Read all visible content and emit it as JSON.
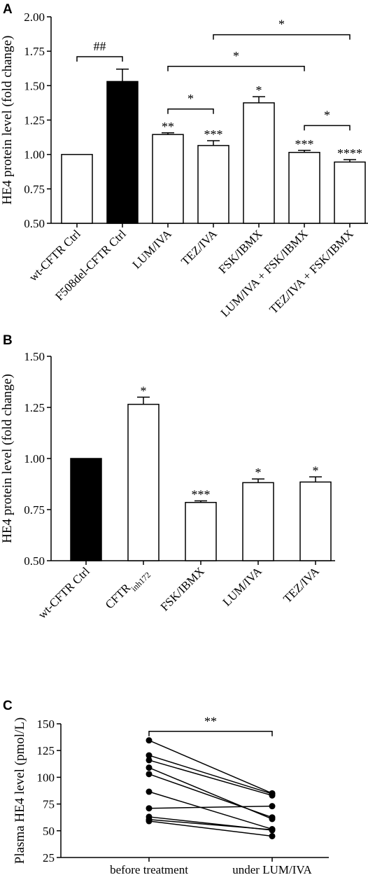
{
  "chart_data": [
    {
      "panel": "A",
      "type": "bar",
      "ylabel": "HE4 protein level (fold change)",
      "ylim": [
        0.5,
        2.0
      ],
      "yticks": [
        "0.50",
        "0.75",
        "1.00",
        "1.25",
        "1.50",
        "1.75",
        "2.00"
      ],
      "categories": [
        "wt-CFTR Ctrl",
        "F508del-CFTR Ctrl",
        "LUM/IVA",
        "TEZ/IVA",
        "FSK/IBMX",
        "LUM/IVA + FSK/IBMX",
        "TEZ/IVA + FSK/IBMX"
      ],
      "values": [
        1.0,
        1.53,
        1.145,
        1.065,
        1.375,
        1.015,
        0.945
      ],
      "errors": [
        0.0,
        0.09,
        0.012,
        0.035,
        0.045,
        0.015,
        0.018
      ],
      "fills": [
        "#ffffff",
        "#000000",
        "#ffffff",
        "#ffffff",
        "#ffffff",
        "#ffffff",
        "#ffffff"
      ],
      "labels": [
        "",
        "",
        "**",
        "***",
        "*",
        "***",
        "****"
      ],
      "brackets": [
        {
          "from": 0,
          "to": 1,
          "y": 1.71,
          "label": "##"
        },
        {
          "from": 2,
          "to": 3,
          "y": 1.33,
          "label": "*"
        },
        {
          "from": 2,
          "to": 5,
          "y": 1.64,
          "label": "*"
        },
        {
          "from": 3,
          "to": 6,
          "y": 1.87,
          "label": "*"
        },
        {
          "from": 5,
          "to": 6,
          "y": 1.21,
          "label": "*"
        }
      ]
    },
    {
      "panel": "B",
      "type": "bar",
      "ylabel": "HE4 protein level (fold change)",
      "ylim": [
        0.5,
        1.5
      ],
      "yticks": [
        "0.50",
        "0.75",
        "1.00",
        "1.25",
        "1.50"
      ],
      "categories": [
        "wt-CFTR Ctrl",
        "CFTR",
        "FSK/IBMX",
        "LUM/IVA",
        "TEZ/IVA"
      ],
      "category_subscripts": [
        "",
        "inh172",
        "",
        "",
        ""
      ],
      "values": [
        1.0,
        1.265,
        0.785,
        0.882,
        0.885
      ],
      "errors": [
        0.0,
        0.035,
        0.008,
        0.018,
        0.025
      ],
      "fills": [
        "#000000",
        "#ffffff",
        "#ffffff",
        "#ffffff",
        "#ffffff"
      ],
      "labels": [
        "",
        "*",
        "***",
        "*",
        "*"
      ]
    },
    {
      "panel": "C",
      "type": "line",
      "ylabel": "Plasma HE4 level (pmol/L)",
      "ylim": [
        25,
        150
      ],
      "yticks": [
        "25",
        "50",
        "75",
        "100",
        "125",
        "150"
      ],
      "categories": [
        "before treatment",
        "under LUM/IVA"
      ],
      "pairs": [
        [
          134.5,
          85.0
        ],
        [
          120.5,
          84.5
        ],
        [
          116.0,
          83.0
        ],
        [
          109.0,
          61.0
        ],
        [
          103.0,
          62.5
        ],
        [
          86.5,
          51.5
        ],
        [
          71.0,
          73.0
        ],
        [
          63.0,
          50.5
        ],
        [
          59.0,
          45.0
        ],
        [
          60.5,
          51.0
        ]
      ],
      "bracket": {
        "y": 143,
        "label": "**"
      }
    }
  ],
  "panels": {
    "a": "A",
    "b": "B",
    "c": "C"
  }
}
